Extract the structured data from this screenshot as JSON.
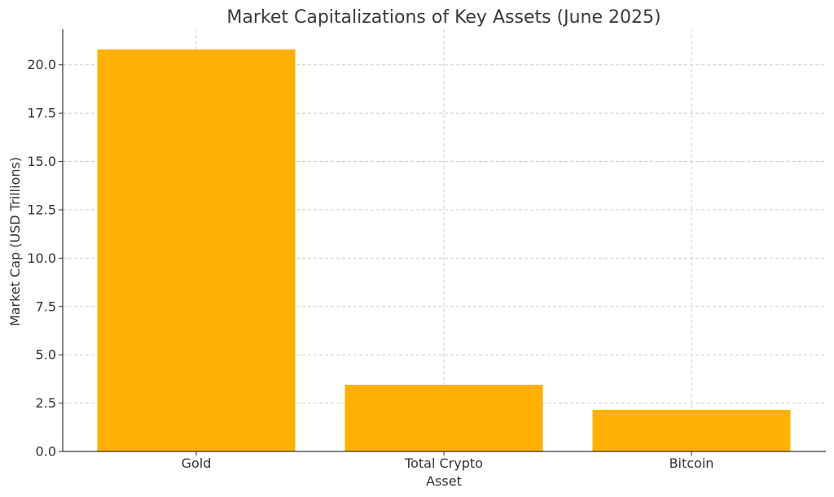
{
  "chart_data": {
    "type": "bar",
    "title": "Market Capitalizations of Key Assets (June 2025)",
    "xlabel": "Asset",
    "ylabel": "Market Cap (USD Trillions)",
    "categories": [
      "Gold",
      "Total Crypto",
      "Bitcoin"
    ],
    "values": [
      20.8,
      3.45,
      2.15
    ],
    "ylim": [
      0,
      21.84
    ],
    "yticks": [
      0,
      2.5,
      5,
      7.5,
      10,
      12.5,
      15,
      17.5,
      20
    ],
    "ytick_labels": [
      "0.0",
      "2.5",
      "5.0",
      "7.5",
      "10.0",
      "12.5",
      "15.0",
      "17.5",
      "20.0"
    ],
    "bar_color": "#FFB000",
    "grid": true,
    "legend": "none"
  }
}
